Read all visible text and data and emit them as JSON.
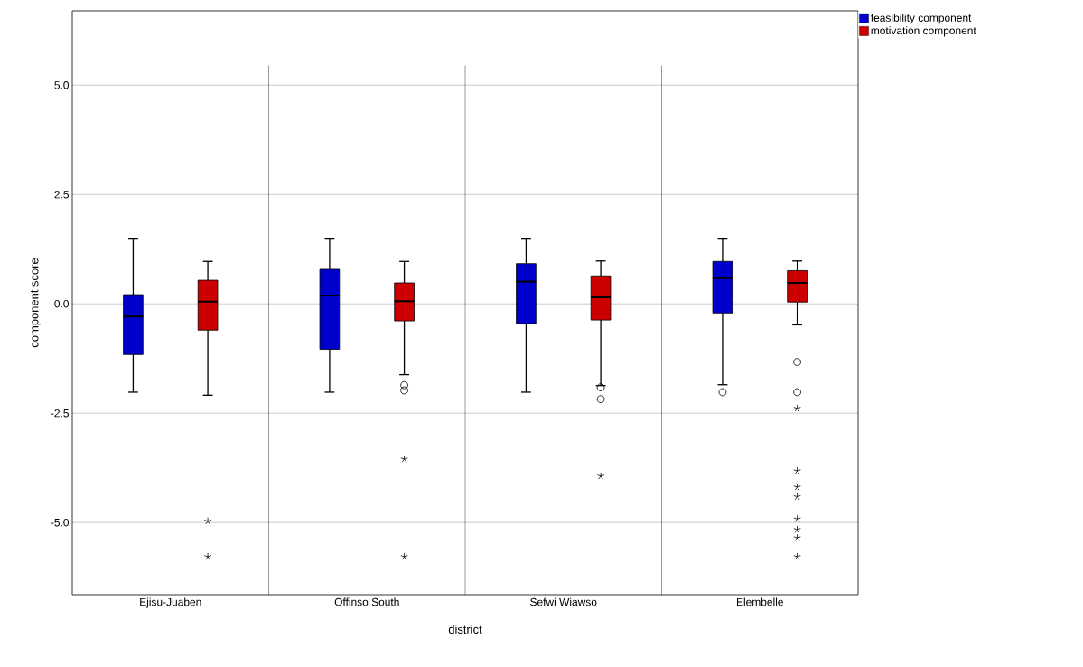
{
  "chart_data": {
    "type": "box",
    "xlabel": "district",
    "ylabel": "component score",
    "categories": [
      "Ejisu-Juaben",
      "Offinso South",
      "Sefwi Wiawso",
      "Elembelle"
    ],
    "ylim": [
      -6.65,
      6.7
    ],
    "yticks": [
      {
        "value": -5,
        "label": "-5.0"
      },
      {
        "value": -2.5,
        "label": "-2.5"
      },
      {
        "value": 0,
        "label": "0.0"
      },
      {
        "value": 2.5,
        "label": "2.5"
      },
      {
        "value": 5,
        "label": "5.0"
      }
    ],
    "grid": "y",
    "legend": "top right",
    "series": [
      {
        "name": "feasibility component",
        "color": "#0000cc",
        "boxes": [
          {
            "low": -2.02,
            "q1": -1.16,
            "median": -0.29,
            "q3": 0.21,
            "high": 1.5
          },
          {
            "low": -2.02,
            "q1": -1.04,
            "median": 0.19,
            "q3": 0.79,
            "high": 1.5
          },
          {
            "low": -2.02,
            "q1": -0.45,
            "median": 0.51,
            "q3": 0.92,
            "high": 1.5
          },
          {
            "low": -1.85,
            "q1": -0.21,
            "median": 0.59,
            "q3": 0.97,
            "high": 1.5,
            "outliers": [
              -2.02
            ]
          }
        ]
      },
      {
        "name": "motivation component",
        "color": "#cc0000",
        "boxes": [
          {
            "low": -2.09,
            "q1": -0.6,
            "median": 0.05,
            "q3": 0.54,
            "high": 0.97,
            "outliers": [
              -4.97,
              -5.78
            ]
          },
          {
            "low": -1.62,
            "q1": -0.39,
            "median": 0.06,
            "q3": 0.48,
            "high": 0.97,
            "outliers": [
              -1.86,
              -1.98,
              -3.55,
              -5.78
            ]
          },
          {
            "low": -1.87,
            "q1": -0.37,
            "median": 0.15,
            "q3": 0.64,
            "high": 0.98,
            "outliers": [
              -1.91,
              -2.18,
              -3.94
            ]
          },
          {
            "low": -0.48,
            "q1": 0.04,
            "median": 0.48,
            "q3": 0.76,
            "high": 0.98,
            "outliers": [
              -1.33,
              -2.02,
              -2.39,
              -3.82,
              -4.19,
              -4.41,
              -4.92,
              -5.16,
              -5.35,
              -5.78
            ]
          }
        ]
      }
    ]
  }
}
